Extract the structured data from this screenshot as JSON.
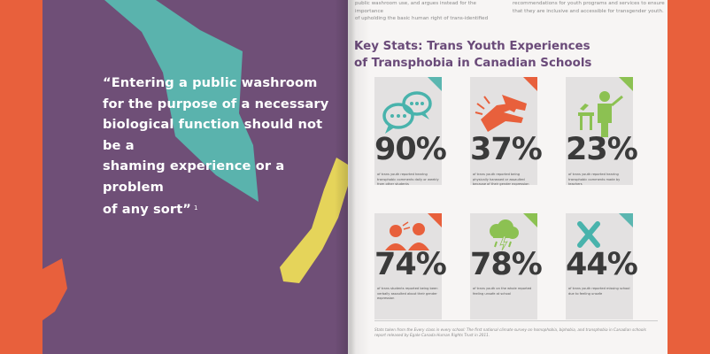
{
  "left_page": {
    "quote_lines": [
      "“Entering a public washroom",
      "for the purpose of a necessary",
      "biological function should not be a",
      "shaming experience or a problem",
      "of any sort”"
    ],
    "footnote_marker": "1"
  },
  "right_page": {
    "top_text_left": [
      "public washroom use, and argues instead for the importance",
      "of upholding the basic human right of trans-identified"
    ],
    "top_text_right": [
      "recommendations for youth programs and services to ensure",
      "that they are inclusive and accessible for transgender youth."
    ],
    "title_lines": [
      "Key Stats: Trans Youth Experiences",
      "of Transphobia in Canadian Schools"
    ],
    "stats": [
      {
        "percent": "90%",
        "description": "of trans youth reported hearing transphobic comments daily or weekly from other students",
        "icon": "speech-bubbles-icon",
        "accent": "#5bb6b0",
        "icon_color": "#49b3ac"
      },
      {
        "percent": "37%",
        "description": "of trans youth reported being physically harassed or assaulted because of their gender expression",
        "icon": "hand-grab-icon",
        "accent": "#e8603c",
        "icon_color": "#e8603c"
      },
      {
        "percent": "23%",
        "description": "of trans youth reported hearing transphobic comments made by teachers",
        "icon": "teacher-icon",
        "accent": "#8cc152",
        "icon_color": "#8cc152"
      },
      {
        "percent": "74%",
        "description": "of trans students reported being been verbally assaulted about their gender expression",
        "icon": "verbal-assault-icon",
        "accent": "#e8603c",
        "icon_color": "#e8603c"
      },
      {
        "percent": "78%",
        "description": "of trans youth on the whole reported feeling unsafe at school",
        "icon": "storm-cloud-icon",
        "accent": "#8cc152",
        "icon_color": "#8cc152"
      },
      {
        "percent": "44%",
        "description": "of trans youth reported missing school due to feeling unsafe",
        "icon": "x-mark-icon",
        "accent": "#5bb6b0",
        "icon_color": "#49b3ac"
      }
    ],
    "footnote": "Stats taken from the Every class in every school: The first national climate survey on homophobia, biphobia, and transphobia in Canadian schools report released by Egale Canada Human Rights Trust in 2011."
  },
  "colors": {
    "background": "#e8603c",
    "left_page": "#6f4f77",
    "title": "#6a4a79",
    "teal": "#5bb6b0",
    "yellow": "#e7d65a"
  }
}
